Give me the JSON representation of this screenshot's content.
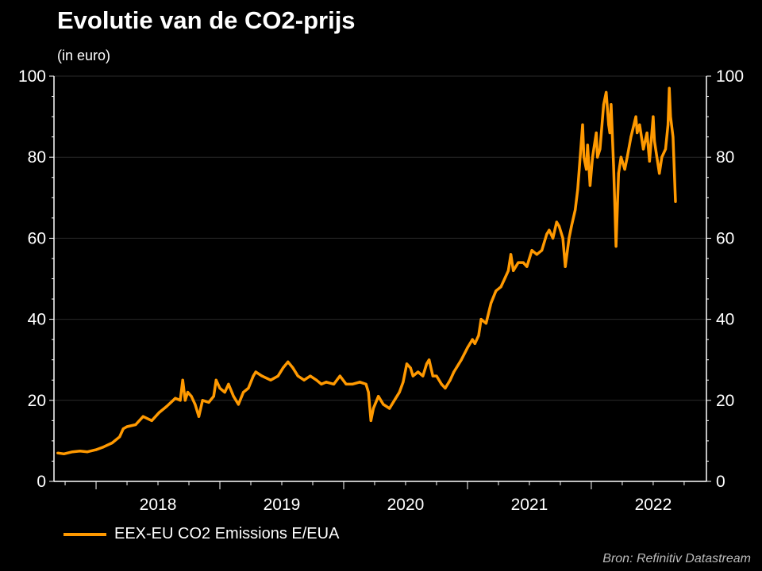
{
  "chart_data": {
    "type": "line",
    "title": "Evolutie van de CO2-prijs",
    "subtitle": "(in euro)",
    "source": "Bron: Refinitiv Datastream",
    "xlabel": "",
    "ylabel": "",
    "xlim": [
      2017.66,
      2022.93
    ],
    "ylim": [
      0,
      100
    ],
    "y_ticks": [
      0,
      20,
      40,
      60,
      80,
      100
    ],
    "x_tick_labels": [
      "2018",
      "2019",
      "2020",
      "2021",
      "2022"
    ],
    "grid": true,
    "legend_position": "bottom-left",
    "series": [
      {
        "name": "EEX-EU CO2 Emissions E/EUA",
        "color": "#ff9900",
        "x": [
          2017.69,
          2017.74,
          2017.81,
          2017.87,
          2017.93,
          2018.0,
          2018.06,
          2018.13,
          2018.19,
          2018.22,
          2018.25,
          2018.32,
          2018.38,
          2018.45,
          2018.51,
          2018.57,
          2018.64,
          2018.68,
          2018.7,
          2018.72,
          2018.74,
          2018.77,
          2018.8,
          2018.83,
          2018.86,
          2018.91,
          2018.95,
          2018.97,
          2019.0,
          2019.04,
          2019.07,
          2019.11,
          2019.15,
          2019.19,
          2019.23,
          2019.27,
          2019.29,
          2019.34,
          2019.41,
          2019.47,
          2019.51,
          2019.55,
          2019.59,
          2019.63,
          2019.68,
          2019.73,
          2019.78,
          2019.82,
          2019.86,
          2019.92,
          2019.97,
          2020.02,
          2020.07,
          2020.13,
          2020.18,
          2020.2,
          2020.22,
          2020.24,
          2020.28,
          2020.32,
          2020.37,
          2020.41,
          2020.45,
          2020.48,
          2020.51,
          2020.54,
          2020.56,
          2020.6,
          2020.64,
          2020.67,
          2020.69,
          2020.72,
          2020.75,
          2020.79,
          2020.82,
          2020.86,
          2020.89,
          2020.95,
          2021.0,
          2021.04,
          2021.06,
          2021.09,
          2021.11,
          2021.15,
          2021.19,
          2021.23,
          2021.27,
          2021.3,
          2021.33,
          2021.35,
          2021.37,
          2021.41,
          2021.45,
          2021.48,
          2021.52,
          2021.56,
          2021.6,
          2021.64,
          2021.66,
          2021.69,
          2021.72,
          2021.74,
          2021.77,
          2021.79,
          2021.82,
          2021.84,
          2021.87,
          2021.89,
          2021.91,
          2021.93,
          2021.94,
          2021.96,
          2021.97,
          2021.99,
          2022.01,
          2022.04,
          2022.05,
          2022.07,
          2022.1,
          2022.12,
          2022.14,
          2022.15,
          2022.16,
          2022.18,
          2022.19,
          2022.2,
          2022.22,
          2022.24,
          2022.27,
          2022.29,
          2022.32,
          2022.36,
          2022.37,
          2022.39,
          2022.42,
          2022.45,
          2022.47,
          2022.5,
          2022.51,
          2022.55,
          2022.57,
          2022.6,
          2022.62,
          2022.63,
          2022.64,
          2022.66,
          2022.68
        ],
        "y": [
          7,
          6.8,
          7.3,
          7.5,
          7.3,
          7.8,
          8.5,
          9.5,
          11,
          13,
          13.5,
          14,
          16,
          15,
          17,
          18.5,
          20.5,
          20,
          25,
          20,
          22,
          21,
          19,
          16,
          20,
          19.5,
          21,
          25,
          23,
          22,
          24,
          21,
          19,
          22,
          23,
          26,
          27,
          26,
          25,
          26,
          28,
          29.5,
          28,
          26,
          25,
          26,
          25,
          24,
          24.5,
          24,
          26,
          24,
          24,
          24.5,
          24,
          22,
          15,
          18,
          21,
          19,
          18,
          20,
          22,
          24.5,
          29,
          28,
          26,
          27,
          26,
          29,
          30,
          26,
          26,
          24,
          23,
          25,
          27,
          30,
          33,
          35,
          34,
          36,
          40,
          39,
          44,
          47,
          48,
          50,
          52,
          56,
          52,
          54,
          54,
          53,
          57,
          56,
          57,
          61,
          62,
          60,
          64,
          63,
          60,
          53,
          60,
          63,
          67,
          72,
          80,
          88,
          80,
          77,
          83,
          73,
          80,
          86,
          80,
          82,
          93,
          96,
          88,
          86,
          93,
          78,
          68,
          58,
          76,
          80,
          77,
          80,
          85,
          90,
          86,
          88,
          82,
          86,
          79,
          90,
          84,
          76,
          80,
          82,
          88,
          97,
          90,
          85,
          69
        ]
      }
    ]
  }
}
